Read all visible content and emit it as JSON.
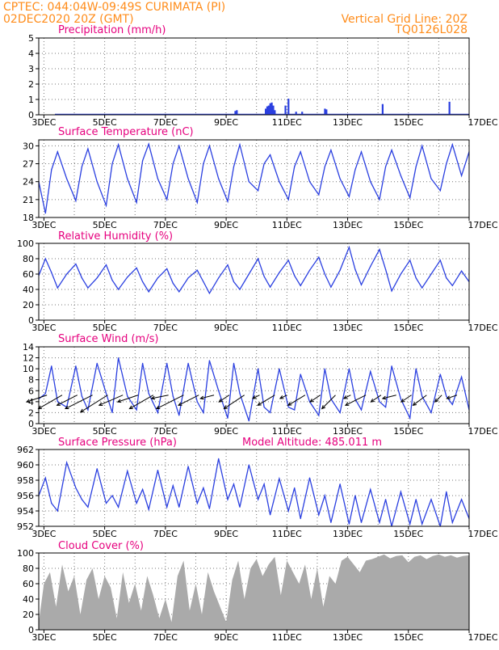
{
  "header": {
    "line1_left": "CPTEC:  044:04W-09:49S  CURIMATA (PI)",
    "line2_left": "02DEC2020 20Z (GMT)",
    "line2_right": "Vertical Grid Line: 20Z",
    "line3_right": "TQ0126L028"
  },
  "x_axis": {
    "days_span": [
      2.83,
      17.0
    ],
    "ticks": [
      {
        "day": 3,
        "label": "3DEC"
      },
      {
        "day": 5,
        "label": "5DEC"
      },
      {
        "day": 7,
        "label": "7DEC"
      },
      {
        "day": 9,
        "label": "9DEC"
      },
      {
        "day": 11,
        "label": "11DEC"
      },
      {
        "day": 13,
        "label": "13DEC"
      },
      {
        "day": 15,
        "label": "15DEC"
      },
      {
        "day": 17,
        "label": "17DEC"
      }
    ]
  },
  "colors": {
    "curve": "#2a3fe0",
    "title": "#e6007e",
    "header": "#ff8c1a",
    "cloud": "#aaaaaa"
  },
  "chart_data": [
    {
      "id": "precip",
      "type": "bar",
      "title": "Precipitation (mm/h)",
      "ylim": [
        0,
        5
      ],
      "yticks": [
        "0",
        "1",
        "2",
        "3",
        "4",
        "5"
      ],
      "x": [
        9.3,
        9.35,
        10.3,
        10.35,
        10.4,
        10.45,
        10.5,
        10.55,
        10.6,
        10.95,
        11.05,
        11.3,
        11.5,
        12.25,
        12.3,
        14.15,
        16.35
      ],
      "values": [
        0.25,
        0.3,
        0.4,
        0.55,
        0.6,
        0.75,
        0.8,
        0.6,
        0.3,
        0.6,
        1.05,
        0.2,
        0.2,
        0.4,
        0.35,
        0.7,
        0.85
      ]
    },
    {
      "id": "temp",
      "type": "line",
      "title": "Surface Temperature (nC)",
      "ylim": [
        18,
        31
      ],
      "yticks": [
        "18",
        "21",
        "24",
        "27",
        "30"
      ],
      "x": [
        2.83,
        3.05,
        3.25,
        3.45,
        3.75,
        4.05,
        4.25,
        4.45,
        4.75,
        5.05,
        5.25,
        5.45,
        5.75,
        6.05,
        6.25,
        6.45,
        6.75,
        7.05,
        7.25,
        7.45,
        7.75,
        8.05,
        8.25,
        8.45,
        8.75,
        9.05,
        9.25,
        9.45,
        9.75,
        10.05,
        10.25,
        10.45,
        10.75,
        11.05,
        11.25,
        11.45,
        11.75,
        12.05,
        12.25,
        12.45,
        12.75,
        13.05,
        13.25,
        13.45,
        13.75,
        14.05,
        14.25,
        14.45,
        14.75,
        15.05,
        15.25,
        15.45,
        15.75,
        16.05,
        16.25,
        16.45,
        16.75,
        17.0
      ],
      "values": [
        24.0,
        18.7,
        26.0,
        29.0,
        24.5,
        20.8,
        26.5,
        29.5,
        24.0,
        20.0,
        27.0,
        30.2,
        24.5,
        20.5,
        27.5,
        30.3,
        24.5,
        21.0,
        27.0,
        30.0,
        24.5,
        20.5,
        27.0,
        30.0,
        24.5,
        20.7,
        26.5,
        30.2,
        24.0,
        22.5,
        27.0,
        28.5,
        24.0,
        21.0,
        26.5,
        29.0,
        24.0,
        21.8,
        26.5,
        29.3,
        24.5,
        21.5,
        26.0,
        29.0,
        24.0,
        21.0,
        26.5,
        29.3,
        25.0,
        21.3,
        26.5,
        30.0,
        24.5,
        22.5,
        27.0,
        30.2,
        25.0,
        29.0
      ]
    },
    {
      "id": "rh",
      "type": "line",
      "title": "Relative Humidity (%)",
      "ylim": [
        0,
        100
      ],
      "yticks": [
        "0",
        "20",
        "40",
        "60",
        "80",
        "100"
      ],
      "x": [
        2.83,
        3.05,
        3.25,
        3.45,
        3.75,
        4.05,
        4.25,
        4.45,
        4.75,
        5.05,
        5.25,
        5.45,
        5.75,
        6.05,
        6.25,
        6.45,
        6.75,
        7.05,
        7.25,
        7.45,
        7.75,
        8.05,
        8.25,
        8.45,
        8.75,
        9.05,
        9.25,
        9.45,
        9.75,
        10.05,
        10.25,
        10.45,
        10.75,
        11.05,
        11.25,
        11.45,
        11.75,
        12.05,
        12.25,
        12.45,
        12.75,
        13.05,
        13.25,
        13.45,
        13.75,
        14.05,
        14.25,
        14.45,
        14.75,
        15.05,
        15.25,
        15.45,
        15.75,
        16.05,
        16.25,
        16.45,
        16.75,
        17.0
      ],
      "values": [
        58,
        80,
        62,
        42,
        60,
        73,
        55,
        42,
        55,
        72,
        52,
        40,
        56,
        68,
        50,
        37,
        55,
        67,
        48,
        37,
        55,
        65,
        50,
        35,
        55,
        72,
        50,
        40,
        60,
        80,
        57,
        43,
        62,
        78,
        58,
        45,
        65,
        82,
        60,
        43,
        65,
        95,
        66,
        46,
        70,
        92,
        66,
        38,
        60,
        78,
        55,
        42,
        60,
        78,
        55,
        45,
        64,
        50
      ]
    },
    {
      "id": "wind",
      "type": "line",
      "title": "Surface Wind (m/s)",
      "ylim": [
        0,
        14
      ],
      "yticks": [
        "0",
        "2",
        "4",
        "6",
        "8",
        "10",
        "12",
        "14"
      ],
      "x": [
        2.83,
        3.05,
        3.25,
        3.45,
        3.75,
        4.05,
        4.25,
        4.45,
        4.75,
        5.05,
        5.25,
        5.45,
        5.75,
        6.05,
        6.25,
        6.45,
        6.75,
        7.05,
        7.25,
        7.45,
        7.75,
        8.05,
        8.25,
        8.45,
        8.75,
        9.05,
        9.25,
        9.45,
        9.75,
        10.05,
        10.25,
        10.45,
        10.75,
        11.05,
        11.25,
        11.45,
        11.75,
        12.05,
        12.25,
        12.45,
        12.75,
        13.05,
        13.25,
        13.45,
        13.75,
        14.05,
        14.25,
        14.45,
        14.75,
        15.05,
        15.25,
        15.45,
        15.75,
        16.05,
        16.25,
        16.45,
        16.75,
        17.0
      ],
      "values": [
        4.5,
        5.5,
        10.5,
        4.0,
        3.0,
        10.5,
        5.0,
        2.5,
        11.0,
        5.5,
        2.0,
        12.0,
        5.0,
        2.5,
        11.0,
        5.5,
        2.0,
        11.0,
        5.0,
        1.5,
        11.0,
        4.0,
        2.0,
        11.5,
        6.0,
        1.0,
        11.0,
        5.5,
        0.5,
        10.0,
        3.0,
        2.0,
        10.0,
        3.0,
        2.5,
        9.0,
        4.0,
        1.5,
        10.0,
        4.5,
        2.0,
        10.0,
        4.5,
        2.5,
        9.5,
        4.0,
        3.0,
        10.5,
        4.5,
        1.0,
        10.0,
        5.0,
        2.0,
        9.0,
        5.0,
        3.5,
        8.5,
        2.5
      ],
      "vectors": [
        {
          "day": 3.1,
          "u": -6,
          "v": -2
        },
        {
          "day": 3.6,
          "u": -7,
          "v": -4
        },
        {
          "day": 4.1,
          "u": -6,
          "v": -3
        },
        {
          "day": 4.6,
          "u": -8,
          "v": -4
        },
        {
          "day": 5.1,
          "u": -8,
          "v": -5
        },
        {
          "day": 5.6,
          "u": -7,
          "v": -3
        },
        {
          "day": 6.1,
          "u": -6,
          "v": -2
        },
        {
          "day": 6.6,
          "u": -7,
          "v": -4
        },
        {
          "day": 7.1,
          "u": -5,
          "v": -1
        },
        {
          "day": 7.6,
          "u": -8,
          "v": -4
        },
        {
          "day": 8.1,
          "u": -6,
          "v": -3
        },
        {
          "day": 8.6,
          "u": -4,
          "v": -1
        },
        {
          "day": 9.1,
          "u": -3,
          "v": -2
        },
        {
          "day": 9.6,
          "u": -6,
          "v": -4
        },
        {
          "day": 10.1,
          "u": -2,
          "v": -1
        },
        {
          "day": 10.6,
          "u": -5,
          "v": -3
        },
        {
          "day": 11.0,
          "u": -2,
          "v": -1
        },
        {
          "day": 11.6,
          "u": -5,
          "v": -3
        },
        {
          "day": 12.1,
          "u": -3,
          "v": -2
        },
        {
          "day": 12.6,
          "u": -4,
          "v": -4
        },
        {
          "day": 13.1,
          "u": -2,
          "v": -1
        },
        {
          "day": 13.6,
          "u": -6,
          "v": -3
        },
        {
          "day": 14.1,
          "u": -3,
          "v": -2
        },
        {
          "day": 14.6,
          "u": -4,
          "v": -1
        },
        {
          "day": 15.1,
          "u": -3,
          "v": -2
        },
        {
          "day": 15.6,
          "u": -4,
          "v": -3
        },
        {
          "day": 16.1,
          "u": -2,
          "v": -2
        },
        {
          "day": 16.6,
          "u": -3,
          "v": -1
        }
      ]
    },
    {
      "id": "pressure",
      "type": "line",
      "title": "Surface Pressure (hPa)",
      "extra_label": "Model Altitude:  485.011 m",
      "ylim": [
        952,
        962
      ],
      "yticks": [
        "952",
        "954",
        "956",
        "958",
        "960",
        "962"
      ],
      "x": [
        2.83,
        3.05,
        3.25,
        3.45,
        3.75,
        4.05,
        4.25,
        4.45,
        4.75,
        5.05,
        5.25,
        5.45,
        5.75,
        6.05,
        6.25,
        6.45,
        6.75,
        7.05,
        7.25,
        7.45,
        7.75,
        8.05,
        8.25,
        8.45,
        8.75,
        9.05,
        9.25,
        9.45,
        9.75,
        10.05,
        10.25,
        10.45,
        10.75,
        11.05,
        11.25,
        11.45,
        11.75,
        12.05,
        12.25,
        12.45,
        12.75,
        13.05,
        13.25,
        13.45,
        13.75,
        14.05,
        14.25,
        14.45,
        14.75,
        15.05,
        15.25,
        15.45,
        15.75,
        16.05,
        16.25,
        16.45,
        16.75,
        17.0
      ],
      "values": [
        956.0,
        958.3,
        955.0,
        954.0,
        960.3,
        957.0,
        955.5,
        954.5,
        959.5,
        955.0,
        956.0,
        954.5,
        959.2,
        955.0,
        956.8,
        954.2,
        959.3,
        954.5,
        957.3,
        954.5,
        959.8,
        955.0,
        957.0,
        954.3,
        960.8,
        955.5,
        957.5,
        954.5,
        960.0,
        955.5,
        957.5,
        953.5,
        958.2,
        954.0,
        957.0,
        953.0,
        958.3,
        953.5,
        956.0,
        952.5,
        957.5,
        952.3,
        956.0,
        952.5,
        956.8,
        952.5,
        955.5,
        952.0,
        956.5,
        952.3,
        955.5,
        952.3,
        955.5,
        952.0,
        956.5,
        952.5,
        955.5,
        953.0
      ]
    },
    {
      "id": "cloud",
      "type": "area",
      "title": "Cloud Cover (%)",
      "ylim": [
        0,
        100
      ],
      "yticks": [
        "0",
        "20",
        "40",
        "60",
        "80",
        "100"
      ],
      "x": [
        2.83,
        3.0,
        3.2,
        3.4,
        3.6,
        3.8,
        4.0,
        4.2,
        4.4,
        4.6,
        4.8,
        5.0,
        5.2,
        5.4,
        5.6,
        5.8,
        6.0,
        6.2,
        6.4,
        6.6,
        6.8,
        7.0,
        7.2,
        7.4,
        7.6,
        7.8,
        8.0,
        8.2,
        8.4,
        8.6,
        8.8,
        9.0,
        9.2,
        9.4,
        9.6,
        9.8,
        10.0,
        10.2,
        10.4,
        10.6,
        10.8,
        11.0,
        11.2,
        11.4,
        11.6,
        11.8,
        12.0,
        12.2,
        12.4,
        12.6,
        12.8,
        13.0,
        13.2,
        13.4,
        13.6,
        13.8,
        14.0,
        14.2,
        14.4,
        14.6,
        14.8,
        15.0,
        15.2,
        15.4,
        15.6,
        15.8,
        16.0,
        16.2,
        16.4,
        16.6,
        16.8,
        17.0
      ],
      "values": [
        10,
        60,
        75,
        30,
        85,
        50,
        70,
        20,
        65,
        80,
        40,
        70,
        55,
        15,
        75,
        35,
        60,
        25,
        70,
        45,
        15,
        40,
        10,
        70,
        90,
        25,
        60,
        20,
        75,
        50,
        30,
        10,
        65,
        90,
        40,
        80,
        92,
        70,
        85,
        95,
        45,
        90,
        75,
        60,
        85,
        40,
        80,
        30,
        70,
        60,
        90,
        95,
        85,
        75,
        90,
        92,
        95,
        98,
        93,
        96,
        97,
        88,
        95,
        97,
        92,
        96,
        98,
        95,
        97,
        94,
        96,
        97
      ]
    }
  ]
}
